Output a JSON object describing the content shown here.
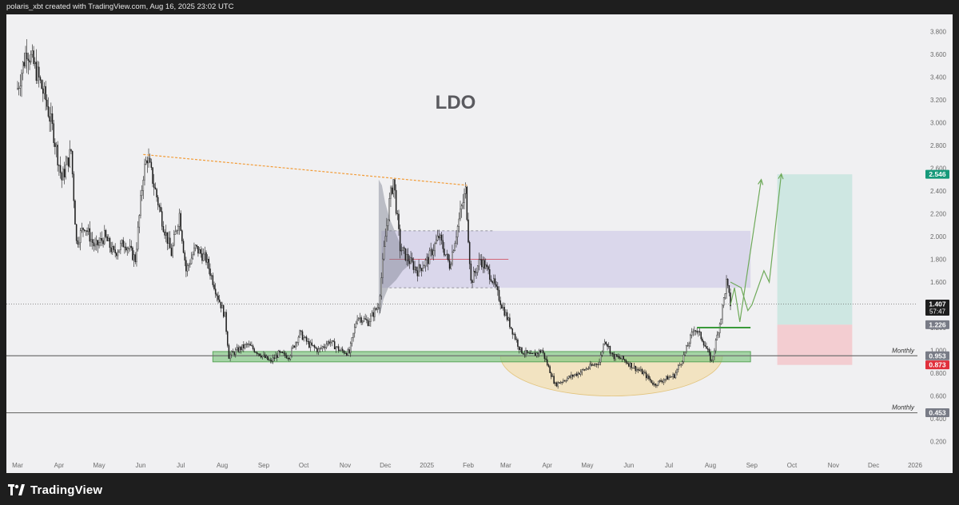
{
  "header": {
    "attribution": "polaris_xbt created with TradingView.com, Aug 16, 2025 23:02 UTC"
  },
  "footer": {
    "brand": "TradingView"
  },
  "colors": {
    "background": "#f0f0f2",
    "candle": "#1c1c1c",
    "support_zone": "#7cc47c",
    "resistance_zone": "#c9c2e6",
    "cup_fill": "#f3dfb0",
    "target_zone": "#bfe3dc",
    "stop_zone": "#f4c4c8",
    "trendline": "#f29c38",
    "projection_arrow": "#6faa5a",
    "badge_green": "#16997a",
    "badge_red": "#e0303c",
    "badge_gray": "#787b86",
    "badge_dark": "#1e1e1e"
  },
  "chart_data": {
    "type": "candlestick",
    "title": "LDO",
    "x_axis": {
      "ticks": [
        "Mar",
        "Apr",
        "May",
        "Jun",
        "Jul",
        "Aug",
        "Sep",
        "Oct",
        "Nov",
        "Dec",
        "2025",
        "Feb",
        "Mar",
        "Apr",
        "May",
        "Jun",
        "Jul",
        "Aug",
        "Sep",
        "Oct",
        "Nov",
        "Dec",
        "2026"
      ],
      "range": [
        "2024-03",
        "2026-01"
      ]
    },
    "y_axis": {
      "ticks": [
        "0.200",
        "0.400",
        "0.600",
        "0.800",
        "1.000",
        "1.200",
        "1.400",
        "1.600",
        "1.800",
        "2.000",
        "2.200",
        "2.400",
        "2.600",
        "2.800",
        "3.000",
        "3.200",
        "3.400",
        "3.600",
        "3.800"
      ],
      "range": [
        0.05,
        3.95
      ]
    },
    "price_path": [
      [
        "2024-03-01",
        3.3
      ],
      [
        "2024-03-08",
        3.65
      ],
      [
        "2024-03-15",
        3.45
      ],
      [
        "2024-03-22",
        3.2
      ],
      [
        "2024-03-28",
        2.9
      ],
      [
        "2024-04-03",
        2.5
      ],
      [
        "2024-04-10",
        2.75
      ],
      [
        "2024-04-14",
        1.95
      ],
      [
        "2024-04-20",
        2.1
      ],
      [
        "2024-04-28",
        1.9
      ],
      [
        "2024-05-05",
        2.0
      ],
      [
        "2024-05-12",
        1.85
      ],
      [
        "2024-05-20",
        1.95
      ],
      [
        "2024-05-28",
        1.8
      ],
      [
        "2024-06-03",
        2.55
      ],
      [
        "2024-06-06",
        2.7
      ],
      [
        "2024-06-12",
        2.4
      ],
      [
        "2024-06-18",
        2.1
      ],
      [
        "2024-06-24",
        1.85
      ],
      [
        "2024-06-30",
        2.2
      ],
      [
        "2024-07-05",
        1.7
      ],
      [
        "2024-07-12",
        1.9
      ],
      [
        "2024-07-20",
        1.8
      ],
      [
        "2024-07-28",
        1.5
      ],
      [
        "2024-08-03",
        1.3
      ],
      [
        "2024-08-06",
        0.95
      ],
      [
        "2024-08-12",
        1.0
      ],
      [
        "2024-08-20",
        1.05
      ],
      [
        "2024-08-28",
        0.98
      ],
      [
        "2024-09-06",
        0.9
      ],
      [
        "2024-09-12",
        0.97
      ],
      [
        "2024-09-20",
        0.95
      ],
      [
        "2024-09-28",
        1.15
      ],
      [
        "2024-10-05",
        1.05
      ],
      [
        "2024-10-12",
        1.0
      ],
      [
        "2024-10-20",
        1.08
      ],
      [
        "2024-10-28",
        1.0
      ],
      [
        "2024-11-04",
        0.98
      ],
      [
        "2024-11-10",
        1.3
      ],
      [
        "2024-11-18",
        1.25
      ],
      [
        "2024-11-26",
        1.4
      ],
      [
        "2024-12-01",
        2.0
      ],
      [
        "2024-12-04",
        2.3
      ],
      [
        "2024-12-07",
        2.5
      ],
      [
        "2024-12-12",
        1.9
      ],
      [
        "2024-12-18",
        1.8
      ],
      [
        "2024-12-25",
        1.7
      ],
      [
        "2025-01-02",
        1.8
      ],
      [
        "2025-01-10",
        2.0
      ],
      [
        "2025-01-18",
        1.75
      ],
      [
        "2025-01-26",
        2.2
      ],
      [
        "2025-01-30",
        2.4
      ],
      [
        "2025-02-03",
        1.6
      ],
      [
        "2025-02-10",
        1.8
      ],
      [
        "2025-02-18",
        1.65
      ],
      [
        "2025-02-26",
        1.4
      ],
      [
        "2025-03-05",
        1.2
      ],
      [
        "2025-03-12",
        1.0
      ],
      [
        "2025-03-20",
        0.95
      ],
      [
        "2025-03-28",
        1.0
      ],
      [
        "2025-04-07",
        0.7
      ],
      [
        "2025-04-15",
        0.75
      ],
      [
        "2025-04-24",
        0.8
      ],
      [
        "2025-05-02",
        0.85
      ],
      [
        "2025-05-10",
        0.9
      ],
      [
        "2025-05-14",
        1.1
      ],
      [
        "2025-05-20",
        0.95
      ],
      [
        "2025-05-28",
        0.92
      ],
      [
        "2025-06-05",
        0.85
      ],
      [
        "2025-06-12",
        0.8
      ],
      [
        "2025-06-20",
        0.7
      ],
      [
        "2025-06-28",
        0.75
      ],
      [
        "2025-07-05",
        0.78
      ],
      [
        "2025-07-12",
        0.95
      ],
      [
        "2025-07-20",
        1.2
      ],
      [
        "2025-07-26",
        1.1
      ],
      [
        "2025-08-02",
        0.9
      ],
      [
        "2025-08-09",
        1.3
      ],
      [
        "2025-08-13",
        1.6
      ],
      [
        "2025-08-16",
        1.407
      ]
    ],
    "levels": [
      {
        "label": "Monthly",
        "value": 0.953
      },
      {
        "label": "Monthly",
        "value": 0.453
      }
    ],
    "price_badges": [
      {
        "value": "2.546",
        "color": "#16997a"
      },
      {
        "value": "1.407",
        "sub": "57:47",
        "color": "#1e1e1e"
      },
      {
        "value": "1.226",
        "color": "#787b86"
      },
      {
        "value": "0.953",
        "color": "#787b86"
      },
      {
        "value": "0.873",
        "color": "#e0303c"
      },
      {
        "value": "0.453",
        "color": "#787b86"
      }
    ],
    "zones": {
      "support": {
        "from": "2024-07-25",
        "to": "2025-08-31",
        "low": 0.9,
        "high": 0.99
      },
      "resistance": {
        "from": "2024-11-28",
        "to": "2025-08-31",
        "low": 1.55,
        "high": 2.05
      },
      "long_target": {
        "from": "2025-09-20",
        "to": "2025-11-15",
        "low": 1.226,
        "high": 2.546
      },
      "long_stop": {
        "from": "2025-09-20",
        "to": "2025-11-15",
        "low": 0.873,
        "high": 1.226
      },
      "cup": {
        "from": "2025-02-25",
        "to": "2025-08-10",
        "top": 0.953,
        "bottom": 0.6
      }
    },
    "trendline": {
      "from": [
        "2024-06-03",
        2.72
      ],
      "to": [
        "2025-01-31",
        2.45
      ]
    },
    "breakout_line": {
      "from": [
        "2025-07-22",
        1.2
      ],
      "to": [
        "2025-08-31",
        1.2
      ]
    },
    "projections": [
      [
        [
          "2025-08-16",
          1.4
        ],
        [
          "2025-08-19",
          1.55
        ],
        [
          "2025-08-23",
          1.25
        ],
        [
          "2025-09-08",
          2.5
        ]
      ],
      [
        [
          "2025-08-16",
          1.6
        ],
        [
          "2025-08-24",
          1.55
        ],
        [
          "2025-08-29",
          1.35
        ],
        [
          "2025-09-01",
          1.4
        ],
        [
          "2025-09-10",
          1.7
        ],
        [
          "2025-09-14",
          1.6
        ],
        [
          "2025-09-23",
          2.55
        ]
      ]
    ]
  }
}
